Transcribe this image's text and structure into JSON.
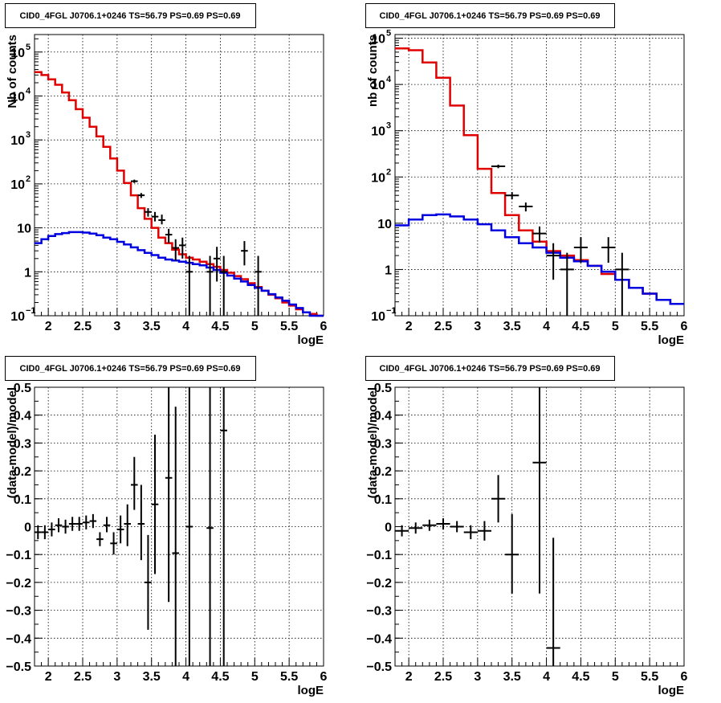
{
  "chart_data": [
    {
      "id": "tl",
      "type": "step-line",
      "title": "CID0_4FGL J0706.1+0246 TS=56.79 PS=0.69 PS=0.69",
      "xlabel": "logE",
      "ylabel": "Nb of counts",
      "xlim": [
        1.8,
        6.0
      ],
      "ylim": [
        0.1,
        250000
      ],
      "y_scale": "log",
      "grid": true,
      "x_ticks": [
        2,
        2.5,
        3,
        3.5,
        4,
        4.5,
        5,
        5.5,
        6
      ],
      "x_tick_labels": [
        "2",
        "2.5",
        "3",
        "3.5",
        "4",
        "4.5",
        "5",
        "5.5",
        "6"
      ],
      "y_ticks": [
        {
          "value": 0.1,
          "base": "10",
          "exp": "−1"
        },
        {
          "value": 1,
          "base": "1",
          "exp": ""
        },
        {
          "value": 10,
          "base": "10",
          "exp": ""
        },
        {
          "value": 100,
          "base": "10",
          "exp": "2"
        },
        {
          "value": 1000,
          "base": "10",
          "exp": "3"
        },
        {
          "value": 10000,
          "base": "10",
          "exp": "4"
        },
        {
          "value": 100000,
          "base": "10",
          "exp": "5"
        }
      ],
      "series": [
        {
          "color": "#e00000",
          "bin_edges": [
            1.8,
            1.9,
            2.0,
            2.1,
            2.2,
            2.3,
            2.4,
            2.5,
            2.6,
            2.7,
            2.8,
            2.9,
            3.0,
            3.1,
            3.2,
            3.3,
            3.4,
            3.5,
            3.6,
            3.7,
            3.8,
            3.9,
            4.0,
            4.1,
            4.2,
            4.3,
            4.4,
            4.5,
            4.6,
            4.7,
            4.8,
            4.9,
            5.0,
            5.1,
            5.2,
            5.3,
            5.4,
            5.5,
            5.6,
            5.7,
            5.8,
            5.9,
            6.0
          ],
          "values": [
            35000,
            30000,
            24000,
            18000,
            12000,
            8000,
            5000,
            3200,
            2000,
            1200,
            700,
            380,
            200,
            105,
            55,
            28,
            16,
            10,
            6,
            4.5,
            3.2,
            2.5,
            2.1,
            1.9,
            1.7,
            1.5,
            1.3,
            1.1,
            0.95,
            0.8,
            0.68,
            0.55,
            0.45,
            0.37,
            0.3,
            0.25,
            0.2,
            0.17,
            0.14,
            0.12,
            0.11,
            0.1
          ]
        },
        {
          "color": "#0000e0",
          "bin_edges": [
            1.8,
            1.9,
            2.0,
            2.1,
            2.2,
            2.3,
            2.4,
            2.5,
            2.6,
            2.7,
            2.8,
            2.9,
            3.0,
            3.1,
            3.2,
            3.3,
            3.4,
            3.5,
            3.6,
            3.7,
            3.8,
            3.9,
            4.0,
            4.1,
            4.2,
            4.3,
            4.4,
            4.5,
            4.6,
            4.7,
            4.8,
            4.9,
            5.0,
            5.1,
            5.2,
            5.3,
            5.4,
            5.5,
            5.6,
            5.7,
            5.8,
            5.9,
            6.0
          ],
          "values": [
            4.5,
            5.5,
            6.5,
            7.2,
            7.6,
            8.0,
            8.0,
            7.8,
            7.4,
            6.8,
            6.0,
            5.5,
            4.8,
            4.2,
            3.6,
            3.1,
            2.7,
            2.4,
            2.1,
            1.9,
            1.8,
            1.7,
            1.6,
            1.5,
            1.4,
            1.25,
            1.1,
            0.95,
            0.82,
            0.7,
            0.6,
            0.5,
            0.43,
            0.37,
            0.31,
            0.26,
            0.22,
            0.18,
            0.15,
            0.12,
            0.1,
            0.09
          ]
        }
      ],
      "points": [
        {
          "x": 3.35,
          "xerr": 0.05,
          "y": 55,
          "ylo": 48,
          "yhi": 62
        },
        {
          "x": 3.45,
          "xerr": 0.05,
          "y": 23,
          "ylo": 18,
          "yhi": 28
        },
        {
          "x": 3.55,
          "xerr": 0.05,
          "y": 18,
          "ylo": 14,
          "yhi": 23
        },
        {
          "x": 3.65,
          "xerr": 0.05,
          "y": 15,
          "ylo": 12,
          "yhi": 20
        },
        {
          "x": 3.75,
          "xerr": 0.05,
          "y": 7,
          "ylo": 4.5,
          "yhi": 9.5
        },
        {
          "x": 3.85,
          "xerr": 0.05,
          "y": 3.5,
          "ylo": 1.8,
          "yhi": 5.5
        },
        {
          "x": 3.95,
          "xerr": 0.05,
          "y": 4,
          "ylo": 2.0,
          "yhi": 6.0
        },
        {
          "x": 4.05,
          "xerr": 0.05,
          "y": 1,
          "ylo": 0.1,
          "yhi": 2.3
        },
        {
          "x": 4.35,
          "xerr": 0.05,
          "y": 1,
          "ylo": 0.1,
          "yhi": 2.3
        },
        {
          "x": 4.45,
          "xerr": 0.05,
          "y": 2,
          "ylo": 0.6,
          "yhi": 3.7
        },
        {
          "x": 4.55,
          "xerr": 0.05,
          "y": 1,
          "ylo": 0.1,
          "yhi": 2.3
        },
        {
          "x": 4.85,
          "xerr": 0.05,
          "y": 3,
          "ylo": 1.4,
          "yhi": 5.0
        },
        {
          "x": 5.05,
          "xerr": 0.05,
          "y": 1,
          "ylo": 0.1,
          "yhi": 2.3
        },
        {
          "x": 3.25,
          "xerr": 0.05,
          "y": 115,
          "ylo": 105,
          "yhi": 125
        }
      ]
    },
    {
      "id": "tr",
      "type": "step-line",
      "title": "CID0_4FGL J0706.1+0246 TS=56.79 PS=0.69 PS=0.69",
      "xlabel": "logE",
      "ylabel": "nb of counts",
      "xlim": [
        1.8,
        6.0
      ],
      "ylim": [
        0.1,
        120000
      ],
      "y_scale": "log",
      "grid": true,
      "x_ticks": [
        2,
        2.5,
        3,
        3.5,
        4,
        4.5,
        5,
        5.5,
        6
      ],
      "x_tick_labels": [
        "2",
        "2.5",
        "3",
        "3.5",
        "4",
        "4.5",
        "5",
        "5.5",
        "6"
      ],
      "y_ticks": [
        {
          "value": 0.1,
          "base": "10",
          "exp": "−1"
        },
        {
          "value": 1,
          "base": "1",
          "exp": ""
        },
        {
          "value": 10,
          "base": "10",
          "exp": ""
        },
        {
          "value": 100,
          "base": "10",
          "exp": "2"
        },
        {
          "value": 1000,
          "base": "10",
          "exp": "3"
        },
        {
          "value": 10000,
          "base": "10",
          "exp": "4"
        },
        {
          "value": 100000,
          "base": "10",
          "exp": "5"
        }
      ],
      "series": [
        {
          "color": "#e00000",
          "bin_edges": [
            1.8,
            2.0,
            2.2,
            2.4,
            2.6,
            2.8,
            3.0,
            3.2,
            3.4,
            3.6,
            3.8,
            4.0,
            4.2,
            4.4,
            4.6,
            4.8,
            5.0,
            5.2,
            5.4,
            5.6,
            5.8,
            6.0
          ],
          "values": [
            60000,
            55000,
            30000,
            14000,
            3500,
            800,
            150,
            45,
            15,
            7,
            4,
            2.5,
            2,
            1.6,
            1.2,
            0.8,
            0.6,
            0.4,
            0.3,
            0.22,
            0.18
          ]
        },
        {
          "color": "#0000e0",
          "bin_edges": [
            1.8,
            2.0,
            2.2,
            2.4,
            2.6,
            2.8,
            3.0,
            3.2,
            3.4,
            3.6,
            3.8,
            4.0,
            4.2,
            4.4,
            4.6,
            4.8,
            5.0,
            5.2,
            5.4,
            5.6,
            5.8,
            6.0
          ],
          "values": [
            9,
            12,
            15,
            15.5,
            14,
            12,
            9.5,
            7,
            5,
            3.7,
            3,
            2.3,
            1.8,
            1.5,
            1.2,
            0.9,
            0.6,
            0.4,
            0.3,
            0.22,
            0.18
          ]
        }
      ],
      "points": [
        {
          "x": 3.3,
          "xerr": 0.1,
          "y": 170,
          "ylo": 155,
          "yhi": 185
        },
        {
          "x": 3.5,
          "xerr": 0.1,
          "y": 40,
          "ylo": 33,
          "yhi": 47
        },
        {
          "x": 3.7,
          "xerr": 0.1,
          "y": 23,
          "ylo": 18,
          "yhi": 28
        },
        {
          "x": 3.9,
          "xerr": 0.1,
          "y": 6,
          "ylo": 3.8,
          "yhi": 8.5
        },
        {
          "x": 4.1,
          "xerr": 0.1,
          "y": 2,
          "ylo": 0.6,
          "yhi": 3.7
        },
        {
          "x": 4.3,
          "xerr": 0.1,
          "y": 1,
          "ylo": 0.1,
          "yhi": 2.3
        },
        {
          "x": 4.5,
          "xerr": 0.1,
          "y": 3,
          "ylo": 1.4,
          "yhi": 5.0
        },
        {
          "x": 4.9,
          "xerr": 0.1,
          "y": 3,
          "ylo": 1.4,
          "yhi": 5.0
        },
        {
          "x": 5.1,
          "xerr": 0.1,
          "y": 1,
          "ylo": 0.1,
          "yhi": 2.3
        }
      ]
    },
    {
      "id": "bl",
      "type": "scatter-errorbar",
      "title": "CID0_4FGL J0706.1+0246 TS=56.79 PS=0.69 PS=0.69",
      "xlabel": "logE",
      "ylabel": "(data-model)/model",
      "xlim": [
        1.8,
        6.0
      ],
      "ylim": [
        -0.5,
        0.5
      ],
      "y_scale": "linear",
      "grid": true,
      "x_ticks": [
        2,
        2.5,
        3,
        3.5,
        4,
        4.5,
        5,
        5.5,
        6
      ],
      "x_tick_labels": [
        "2",
        "2.5",
        "3",
        "3.5",
        "4",
        "4.5",
        "5",
        "5.5",
        "6"
      ],
      "y_ticks": [
        {
          "value": -0.5,
          "base": "−0.5",
          "exp": ""
        },
        {
          "value": -0.4,
          "base": "−0.4",
          "exp": ""
        },
        {
          "value": -0.3,
          "base": "−0.3",
          "exp": ""
        },
        {
          "value": -0.2,
          "base": "−0.2",
          "exp": ""
        },
        {
          "value": -0.1,
          "base": "−0.1",
          "exp": ""
        },
        {
          "value": 0,
          "base": "0",
          "exp": ""
        },
        {
          "value": 0.1,
          "base": "0.1",
          "exp": ""
        },
        {
          "value": 0.2,
          "base": "0.2",
          "exp": ""
        },
        {
          "value": 0.3,
          "base": "0.3",
          "exp": ""
        },
        {
          "value": 0.4,
          "base": "0.4",
          "exp": ""
        },
        {
          "value": 0.5,
          "base": "0.5",
          "exp": ""
        }
      ],
      "series": [],
      "points": [
        {
          "x": 1.85,
          "xerr": 0.05,
          "y": -0.02,
          "ylo": -0.045,
          "yhi": 0.005
        },
        {
          "x": 1.95,
          "xerr": 0.05,
          "y": -0.02,
          "ylo": -0.045,
          "yhi": 0.005
        },
        {
          "x": 2.05,
          "xerr": 0.05,
          "y": -0.01,
          "ylo": -0.035,
          "yhi": 0.015
        },
        {
          "x": 2.15,
          "xerr": 0.05,
          "y": 0.005,
          "ylo": -0.02,
          "yhi": 0.03
        },
        {
          "x": 2.25,
          "xerr": 0.05,
          "y": 0.0,
          "ylo": -0.025,
          "yhi": 0.025
        },
        {
          "x": 2.35,
          "xerr": 0.05,
          "y": 0.01,
          "ylo": -0.015,
          "yhi": 0.035
        },
        {
          "x": 2.45,
          "xerr": 0.05,
          "y": 0.01,
          "ylo": -0.015,
          "yhi": 0.035
        },
        {
          "x": 2.55,
          "xerr": 0.05,
          "y": 0.015,
          "ylo": -0.01,
          "yhi": 0.04
        },
        {
          "x": 2.65,
          "xerr": 0.05,
          "y": 0.02,
          "ylo": -0.005,
          "yhi": 0.045
        },
        {
          "x": 2.75,
          "xerr": 0.05,
          "y": -0.045,
          "ylo": -0.07,
          "yhi": -0.02
        },
        {
          "x": 2.85,
          "xerr": 0.05,
          "y": 0.005,
          "ylo": -0.02,
          "yhi": 0.035
        },
        {
          "x": 2.95,
          "xerr": 0.05,
          "y": -0.06,
          "ylo": -0.1,
          "yhi": -0.02
        },
        {
          "x": 3.05,
          "xerr": 0.05,
          "y": -0.01,
          "ylo": -0.06,
          "yhi": 0.04
        },
        {
          "x": 3.15,
          "xerr": 0.05,
          "y": 0.01,
          "ylo": -0.07,
          "yhi": 0.08
        },
        {
          "x": 3.25,
          "xerr": 0.05,
          "y": 0.15,
          "ylo": 0.06,
          "yhi": 0.25
        },
        {
          "x": 3.35,
          "xerr": 0.05,
          "y": 0.01,
          "ylo": -0.12,
          "yhi": 0.15
        },
        {
          "x": 3.45,
          "xerr": 0.05,
          "y": -0.2,
          "ylo": -0.37,
          "yhi": -0.03
        },
        {
          "x": 3.55,
          "xerr": 0.05,
          "y": 0.08,
          "ylo": -0.17,
          "yhi": 0.33
        },
        {
          "x": 3.75,
          "xerr": 0.05,
          "y": 0.175,
          "ylo": -0.27,
          "yhi": 0.5
        },
        {
          "x": 3.85,
          "xerr": 0.05,
          "y": -0.095,
          "ylo": -0.5,
          "yhi": 0.43
        },
        {
          "x": 4.05,
          "xerr": 0.05,
          "y": 0.0,
          "ylo": -0.5,
          "yhi": 0.5
        },
        {
          "x": 4.35,
          "xerr": 0.05,
          "y": -0.005,
          "ylo": -0.5,
          "yhi": 0.5
        },
        {
          "x": 4.55,
          "xerr": 0.05,
          "y": 0.345,
          "ylo": -0.5,
          "yhi": 0.5
        }
      ]
    },
    {
      "id": "br",
      "type": "scatter-errorbar",
      "title": "CID0_4FGL J0706.1+0246 TS=56.79 PS=0.69 PS=0.69",
      "xlabel": "logE",
      "ylabel": "(data-model)/model",
      "xlim": [
        1.8,
        6.0
      ],
      "ylim": [
        -0.5,
        0.5
      ],
      "y_scale": "linear",
      "grid": true,
      "x_ticks": [
        2,
        2.5,
        3,
        3.5,
        4,
        4.5,
        5,
        5.5,
        6
      ],
      "x_tick_labels": [
        "2",
        "2.5",
        "3",
        "3.5",
        "4",
        "4.5",
        "5",
        "5.5",
        "6"
      ],
      "y_ticks": [
        {
          "value": -0.5,
          "base": "−0.5",
          "exp": ""
        },
        {
          "value": -0.4,
          "base": "−0.4",
          "exp": ""
        },
        {
          "value": -0.3,
          "base": "−0.3",
          "exp": ""
        },
        {
          "value": -0.2,
          "base": "−0.2",
          "exp": ""
        },
        {
          "value": -0.1,
          "base": "−0.1",
          "exp": ""
        },
        {
          "value": 0,
          "base": "0",
          "exp": ""
        },
        {
          "value": 0.1,
          "base": "0.1",
          "exp": ""
        },
        {
          "value": 0.2,
          "base": "0.2",
          "exp": ""
        },
        {
          "value": 0.3,
          "base": "0.3",
          "exp": ""
        },
        {
          "value": 0.4,
          "base": "0.4",
          "exp": ""
        },
        {
          "value": 0.5,
          "base": "0.5",
          "exp": ""
        }
      ],
      "series": [],
      "points": [
        {
          "x": 1.9,
          "xerr": 0.1,
          "y": -0.015,
          "ylo": -0.035,
          "yhi": 0.005
        },
        {
          "x": 2.1,
          "xerr": 0.1,
          "y": -0.005,
          "ylo": -0.025,
          "yhi": 0.015
        },
        {
          "x": 2.3,
          "xerr": 0.1,
          "y": 0.005,
          "ylo": -0.015,
          "yhi": 0.025
        },
        {
          "x": 2.5,
          "xerr": 0.1,
          "y": 0.01,
          "ylo": -0.01,
          "yhi": 0.03
        },
        {
          "x": 2.7,
          "xerr": 0.1,
          "y": 0.0,
          "ylo": -0.02,
          "yhi": 0.02
        },
        {
          "x": 2.9,
          "xerr": 0.1,
          "y": -0.02,
          "ylo": -0.045,
          "yhi": 0.005
        },
        {
          "x": 3.1,
          "xerr": 0.1,
          "y": -0.015,
          "ylo": -0.05,
          "yhi": 0.02
        },
        {
          "x": 3.3,
          "xerr": 0.1,
          "y": 0.1,
          "ylo": 0.015,
          "yhi": 0.185
        },
        {
          "x": 3.5,
          "xerr": 0.1,
          "y": -0.1,
          "ylo": -0.24,
          "yhi": 0.045
        },
        {
          "x": 3.9,
          "xerr": 0.1,
          "y": 0.23,
          "ylo": -0.24,
          "yhi": 0.5
        },
        {
          "x": 4.1,
          "xerr": 0.1,
          "y": -0.435,
          "ylo": -0.5,
          "yhi": -0.04
        }
      ]
    }
  ]
}
